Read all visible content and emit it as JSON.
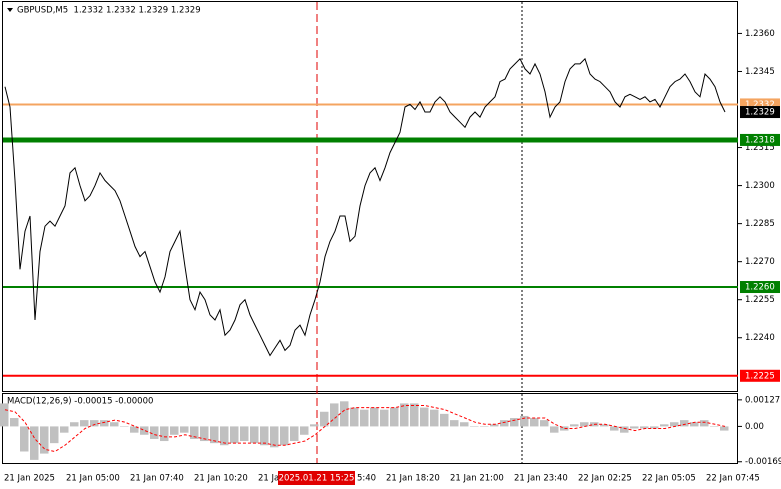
{
  "chart_data": [
    {
      "type": "line",
      "title": "GBPUSD,M5  1.2332 1.2332 1.2329 1.2329",
      "color": "#000000",
      "values": [
        1.2339,
        1.2331,
        1.2302,
        1.2267,
        1.2282,
        1.2288,
        1.2247,
        1.2274,
        1.2284,
        1.2286,
        1.2284,
        1.2288,
        1.2292,
        1.2305,
        1.2307,
        1.23,
        1.2294,
        1.2296,
        1.23,
        1.2305,
        1.2302,
        1.23,
        1.2298,
        1.2294,
        1.2288,
        1.2282,
        1.2276,
        1.2272,
        1.2274,
        1.2268,
        1.2262,
        1.2258,
        1.2264,
        1.2274,
        1.2278,
        1.2282,
        1.2268,
        1.2255,
        1.2251,
        1.2258,
        1.2255,
        1.2249,
        1.2247,
        1.2251,
        1.2241,
        1.2243,
        1.2247,
        1.2253,
        1.2255,
        1.2249,
        1.2245,
        1.2241,
        1.2237,
        1.2233,
        1.2236,
        1.2239,
        1.2235,
        1.2237,
        1.2243,
        1.2245,
        1.2241,
        1.2249,
        1.2255,
        1.2262,
        1.2272,
        1.2278,
        1.2282,
        1.2288,
        1.2288,
        1.2278,
        1.228,
        1.2292,
        1.23,
        1.2305,
        1.2307,
        1.2302,
        1.2307,
        1.2313,
        1.2317,
        1.2321,
        1.2331,
        1.2332,
        1.233,
        1.2333,
        1.2329,
        1.2329,
        1.2333,
        1.2335,
        1.2333,
        1.2329,
        1.2327,
        1.2325,
        1.2323,
        1.2327,
        1.2329,
        1.2327,
        1.2331,
        1.2333,
        1.2335,
        1.2341,
        1.2342,
        1.2346,
        1.2348,
        1.235,
        1.2346,
        1.2344,
        1.2348,
        1.2344,
        1.2337,
        1.2327,
        1.2331,
        1.2333,
        1.2341,
        1.2346,
        1.2348,
        1.2348,
        1.235,
        1.2344,
        1.2342,
        1.2341,
        1.2339,
        1.2337,
        1.2333,
        1.2331,
        1.2335,
        1.2336,
        1.2335,
        1.2334,
        1.2335,
        1.2333,
        1.2334,
        1.2331,
        1.2335,
        1.2339,
        1.2341,
        1.2342,
        1.2344,
        1.2341,
        1.2337,
        1.2335,
        1.2344,
        1.2342,
        1.2339,
        1.2333,
        1.2329
      ],
      "ylim": [
        1.2219,
        1.2372
      ],
      "yticks": [
        {
          "value": 1.236,
          "label": "1.2360"
        },
        1.2345,
        1.2315,
        {
          "value": 1.23,
          "label": "1.2300"
        },
        1.2285,
        {
          "value": 1.227,
          "label": "1.2270"
        },
        1.2255,
        {
          "value": 1.224,
          "label": "1.2240"
        }
      ],
      "levels": [
        {
          "value": 1.2332,
          "color": "#f4a460"
        },
        {
          "value": 1.2318,
          "color": "#008000",
          "bold": true
        },
        {
          "value": 1.226,
          "label": "1.2260",
          "color": "#008000"
        },
        {
          "value": 1.2225,
          "color": "#ff0000"
        }
      ],
      "last": 1.2329,
      "xtick_labels": [
        "21 Jan 2025",
        "21 Jan 05:00",
        "21 Jan 07:40",
        "21 Jan 10:20",
        "21 Ja",
        "5:40",
        "21 Jan 18:20",
        "21 Jan 21:00",
        "21 Jan 23:40",
        "22 Jan 02:25",
        "22 Jan 05:05",
        "22 Jan 07:45"
      ],
      "cursor_label": "2025.01.21 15:25"
    },
    {
      "type": "bar",
      "title": "MACD(12,26,9) -0.00015 -0.00000",
      "color": "#c0c0c0",
      "values": [
        0.0011,
        0.0004,
        -0.0012,
        -0.0016,
        -0.0013,
        -0.0008,
        -0.0003,
        0.0002,
        0.0003,
        0.0003,
        0.0003,
        0.0002,
        0.0,
        -0.0003,
        -0.0004,
        -0.0006,
        -0.0007,
        -0.0004,
        -0.0003,
        -0.0006,
        -0.0007,
        -0.0008,
        -0.0009,
        -0.0008,
        -0.0007,
        -0.0008,
        -0.0009,
        -0.001,
        -0.0009,
        -0.0007,
        -0.0004,
        0.0001,
        0.0007,
        0.0011,
        0.0012,
        0.0009,
        0.0008,
        0.0009,
        0.0008,
        0.0009,
        0.0011,
        0.0011,
        0.0009,
        0.0008,
        0.0006,
        0.0003,
        0.0002,
        0.0,
        0.0,
        0.0001,
        0.0003,
        0.0004,
        0.0005,
        0.0004,
        0.0003,
        -0.0003,
        -0.0002,
        0.0001,
        0.0002,
        0.0002,
        0.0001,
        -0.0002,
        -0.0003,
        -0.0001,
        -0.0001,
        -0.0001,
        0.0001,
        0.0002,
        0.0003,
        0.0002,
        0.0003,
        0.0,
        -0.0002
      ],
      "signal": {
        "color": "#ff0000",
        "values": [
          0.0008,
          0.0007,
          0.0002,
          -0.0006,
          -0.0011,
          -0.0012,
          -0.0009,
          -0.0005,
          -0.0001,
          0.0001,
          0.0002,
          0.0003,
          0.0002,
          0.0,
          -0.0002,
          -0.0004,
          -0.0005,
          -0.0005,
          -0.0004,
          -0.0005,
          -0.0006,
          -0.0007,
          -0.0008,
          -0.0008,
          -0.0008,
          -0.0008,
          -0.0008,
          -0.0009,
          -0.0009,
          -0.0008,
          -0.0007,
          -0.0004,
          0.0,
          0.0004,
          0.0008,
          0.0009,
          0.0009,
          0.0009,
          0.0009,
          0.0009,
          0.001,
          0.001,
          0.001,
          0.0009,
          0.0008,
          0.0006,
          0.0004,
          0.0002,
          0.0001,
          0.0001,
          0.0002,
          0.0003,
          0.0004,
          0.0004,
          0.0004,
          0.0001,
          -0.0001,
          -0.0001,
          0.0,
          0.0001,
          0.0001,
          0.0,
          -0.0001,
          -0.0002,
          -0.0001,
          -0.0001,
          -0.0001,
          0.0,
          0.0001,
          0.0002,
          0.0002,
          0.0001,
          0.0
        ]
      },
      "ylim": [
        -0.00175,
        0.00155
      ],
      "yticks": [
        0.00127,
        {
          "value": 0,
          "label": "0.00"
        },
        -0.00169
      ]
    }
  ]
}
